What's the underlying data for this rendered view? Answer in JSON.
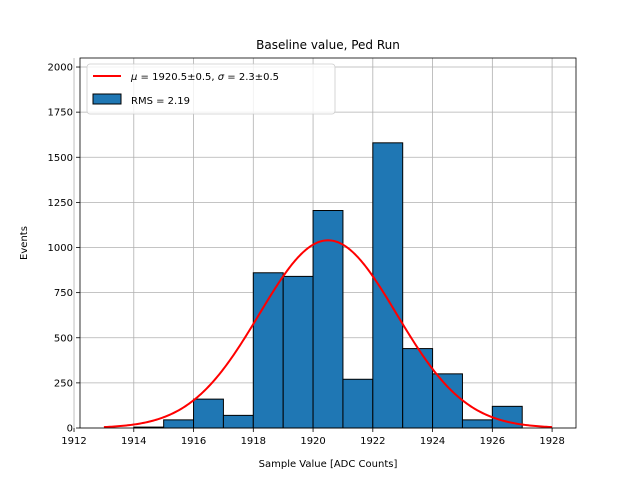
{
  "chart_data": {
    "type": "bar",
    "title": "Baseline value, Ped Run",
    "xlabel": "Sample Value [ADC Counts]",
    "ylabel": "Events",
    "xlim": [
      1912.2,
      1928.8
    ],
    "ylim": [
      0,
      2050
    ],
    "x_ticks": [
      1912,
      1914,
      1916,
      1918,
      1920,
      1922,
      1924,
      1926,
      1928
    ],
    "x_tick_labels": [
      "1912",
      "1914",
      "1916",
      "1918",
      "1920",
      "1922",
      "1924",
      "1926",
      "1928"
    ],
    "y_ticks": [
      0,
      250,
      500,
      750,
      1000,
      1250,
      1500,
      1750,
      2000
    ],
    "y_tick_labels": [
      "0",
      "250",
      "500",
      "750",
      "1000",
      "1250",
      "1500",
      "1750",
      "2000"
    ],
    "grid": true,
    "legend_position": "top-left",
    "histogram": {
      "name": "RMS = 2.19",
      "color": "#1f77b4",
      "edge_color": "#000000",
      "bin_edges": [
        1913.0,
        1914.0,
        1915.0,
        1916.0,
        1917.0,
        1918.0,
        1919.0,
        1920.0,
        1921.0,
        1922.0,
        1923.0,
        1924.0,
        1925.0,
        1926.0,
        1927.0,
        1928.0
      ],
      "bin_start": 1913.0,
      "bin_width": 1.0,
      "counts": [
        0,
        5,
        45,
        160,
        70,
        860,
        840,
        1205,
        270,
        1580,
        440,
        300,
        45,
        120,
        0
      ]
    },
    "fit": {
      "name": "$\\mu = 1920.5 \\pm 0.5, \\sigma = 2.3 \\pm 0.5$",
      "legend_label": {
        "mu_symbol": "μ",
        "mu_value": " = 1920.5±0.5, ",
        "sigma_symbol": "σ",
        "sigma_value": " = 2.3±0.5"
      },
      "color": "#ff0000",
      "type": "gaussian",
      "amplitude": 1040,
      "mu": 1920.5,
      "sigma": 2.3,
      "x_range": [
        1913,
        1928
      ]
    }
  }
}
